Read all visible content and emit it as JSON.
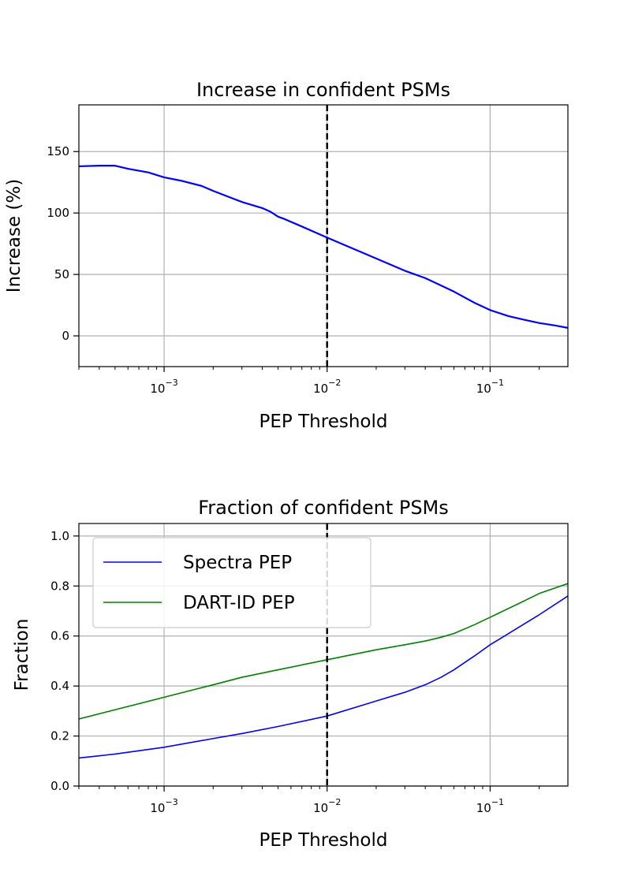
{
  "chart_data": [
    {
      "type": "line",
      "title": "Increase in confident PSMs",
      "xlabel": "PEP Threshold",
      "ylabel": "Increase (%)",
      "xscale": "log",
      "xlim": [
        0.0003,
        0.3
      ],
      "ylim": [
        -25,
        188
      ],
      "xticks": [
        0.001,
        0.01,
        0.1
      ],
      "xtick_labels": [
        {
          "base": "10",
          "exp": "−3"
        },
        {
          "base": "10",
          "exp": "−2"
        },
        {
          "base": "10",
          "exp": "−1"
        }
      ],
      "yticks": [
        0,
        50,
        100,
        150
      ],
      "ytick_labels": [
        "0",
        "50",
        "100",
        "150"
      ],
      "grid": true,
      "threshold_line": {
        "x": 0.01,
        "style": "dashed",
        "color": "#000000"
      },
      "series": [
        {
          "color": "#0000ff",
          "x": [
            0.0003,
            0.0004,
            0.0005,
            0.0006,
            0.0008,
            0.001,
            0.0013,
            0.0017,
            0.002,
            0.0025,
            0.003,
            0.004,
            0.0045,
            0.005,
            0.0055,
            0.007,
            0.01,
            0.015,
            0.02,
            0.03,
            0.04,
            0.05,
            0.06,
            0.08,
            0.1,
            0.13,
            0.17,
            0.2,
            0.25,
            0.3
          ],
          "y": [
            138,
            138.5,
            138.5,
            136,
            133,
            129,
            126,
            122,
            118,
            113,
            109,
            104,
            101,
            97,
            95,
            89,
            80,
            70,
            63,
            53,
            47,
            41,
            36,
            27,
            21,
            16,
            12.5,
            10.5,
            8.5,
            6.5
          ]
        }
      ]
    },
    {
      "type": "line",
      "title": "Fraction of confident PSMs",
      "xlabel": "PEP Threshold",
      "ylabel": "Fraction",
      "xscale": "log",
      "xlim": [
        0.0003,
        0.3
      ],
      "ylim": [
        0.0,
        1.05
      ],
      "xticks": [
        0.001,
        0.01,
        0.1
      ],
      "xtick_labels": [
        {
          "base": "10",
          "exp": "−3"
        },
        {
          "base": "10",
          "exp": "−2"
        },
        {
          "base": "10",
          "exp": "−1"
        }
      ],
      "yticks": [
        0.0,
        0.2,
        0.4,
        0.6,
        0.8,
        1.0
      ],
      "ytick_labels": [
        "0.0",
        "0.2",
        "0.4",
        "0.6",
        "0.8",
        "1.0"
      ],
      "grid": true,
      "legend_position": "top-left",
      "threshold_line": {
        "x": 0.01,
        "style": "dashed",
        "color": "#000000"
      },
      "series": [
        {
          "name": "Spectra PEP",
          "color": "#0000ff",
          "x": [
            0.0003,
            0.0005,
            0.001,
            0.002,
            0.003,
            0.005,
            0.01,
            0.02,
            0.03,
            0.04,
            0.05,
            0.06,
            0.08,
            0.1,
            0.15,
            0.2,
            0.3
          ],
          "y": [
            0.112,
            0.128,
            0.155,
            0.19,
            0.21,
            0.238,
            0.28,
            0.34,
            0.375,
            0.405,
            0.435,
            0.465,
            0.52,
            0.565,
            0.635,
            0.685,
            0.76
          ]
        },
        {
          "name": "DART-ID PEP",
          "color": "#008000",
          "x": [
            0.0003,
            0.0005,
            0.001,
            0.002,
            0.003,
            0.005,
            0.01,
            0.02,
            0.03,
            0.04,
            0.05,
            0.06,
            0.08,
            0.1,
            0.15,
            0.2,
            0.3
          ],
          "y": [
            0.268,
            0.305,
            0.355,
            0.405,
            0.435,
            0.465,
            0.505,
            0.545,
            0.565,
            0.58,
            0.595,
            0.61,
            0.645,
            0.675,
            0.73,
            0.77,
            0.81
          ]
        }
      ]
    }
  ]
}
